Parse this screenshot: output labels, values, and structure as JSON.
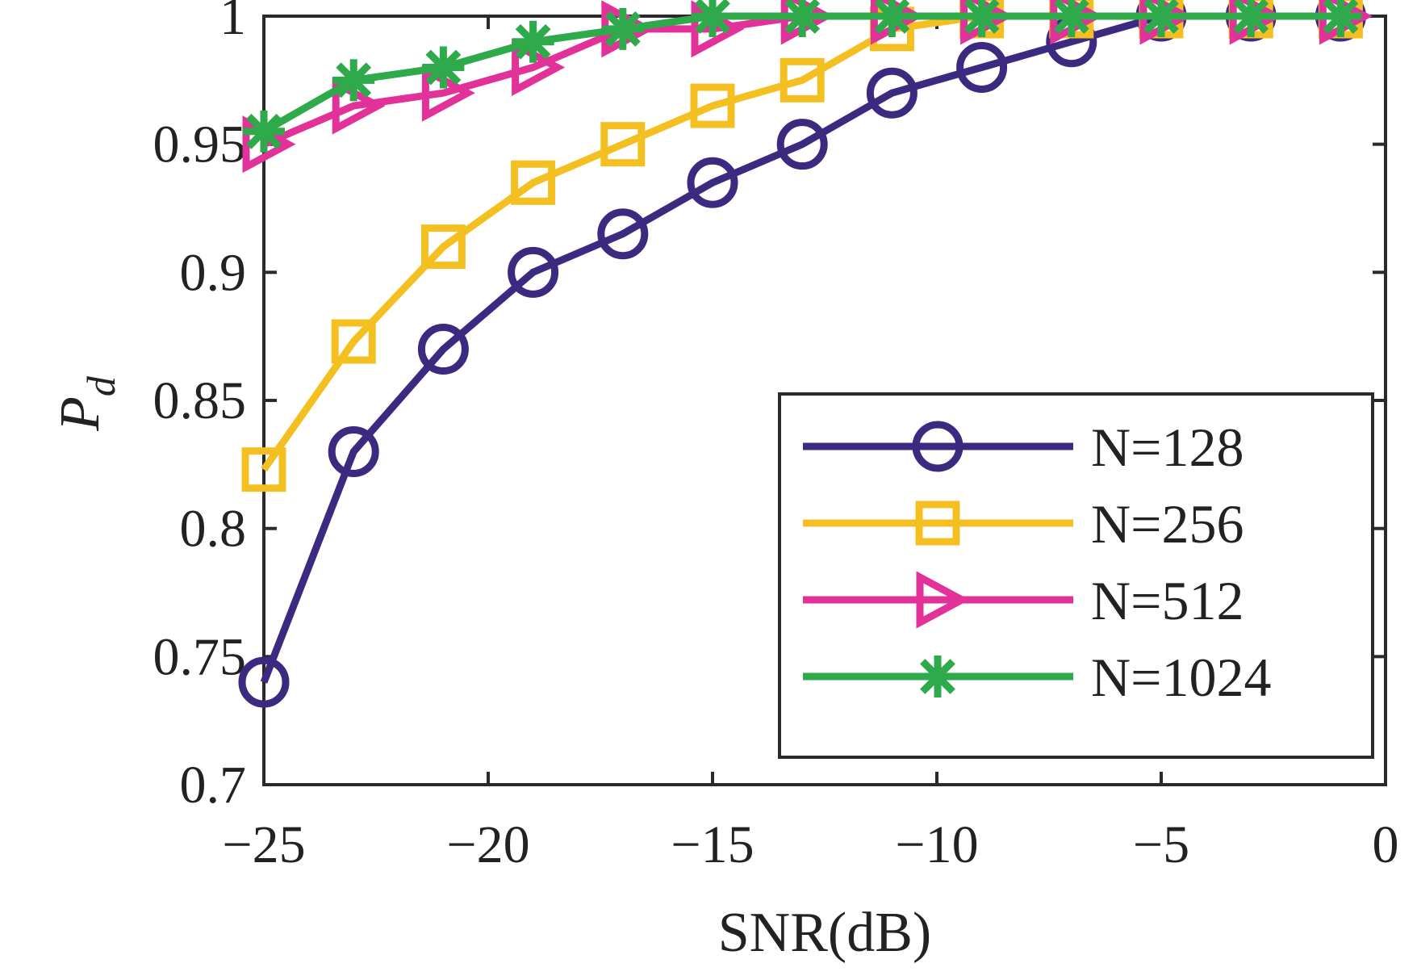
{
  "chart_data": {
    "type": "line",
    "title": "",
    "xlabel": "SNR(dB)",
    "ylabel": {
      "main": "P",
      "subscript": "d"
    },
    "xlim": [
      -25,
      0
    ],
    "ylim": [
      0.7,
      1.0
    ],
    "xticks": [
      -25,
      -20,
      -15,
      -10,
      -5,
      0
    ],
    "xtick_labels": [
      "−25",
      "−20",
      "−15",
      "−10",
      "−5",
      "0"
    ],
    "yticks": [
      0.7,
      0.75,
      0.8,
      0.85,
      0.9,
      0.95,
      1
    ],
    "ytick_labels": [
      "0.7",
      "0.75",
      "0.8",
      "0.85",
      "0.9",
      "0.95",
      "1"
    ],
    "grid": false,
    "legend_position": "bottom-right",
    "x": [
      -25,
      -23,
      -21,
      -19,
      -17,
      -15,
      -13,
      -11,
      -9,
      -7,
      -5,
      -3,
      -1
    ],
    "series": [
      {
        "name": "N=128",
        "color": "#3b2a7f",
        "marker": "circle",
        "values": [
          0.74,
          0.83,
          0.87,
          0.9,
          0.915,
          0.935,
          0.95,
          0.97,
          0.98,
          0.99,
          1.0,
          1.0,
          1.0
        ]
      },
      {
        "name": "N=256",
        "color": "#f4c021",
        "marker": "square",
        "values": [
          0.823,
          0.873,
          0.91,
          0.935,
          0.95,
          0.965,
          0.975,
          0.995,
          1.0,
          1.0,
          1.0,
          1.0,
          1.0
        ]
      },
      {
        "name": "N=512",
        "color": "#e2329a",
        "marker": "triangle-right",
        "values": [
          0.95,
          0.965,
          0.97,
          0.98,
          0.995,
          0.995,
          1.0,
          1.0,
          1.0,
          1.0,
          1.0,
          1.0,
          1.0
        ]
      },
      {
        "name": "N=1024",
        "color": "#2eaa4a",
        "marker": "asterisk",
        "values": [
          0.955,
          0.975,
          0.98,
          0.99,
          0.995,
          1.0,
          1.0,
          1.0,
          1.0,
          1.0,
          1.0,
          1.0,
          1.0
        ]
      }
    ]
  }
}
